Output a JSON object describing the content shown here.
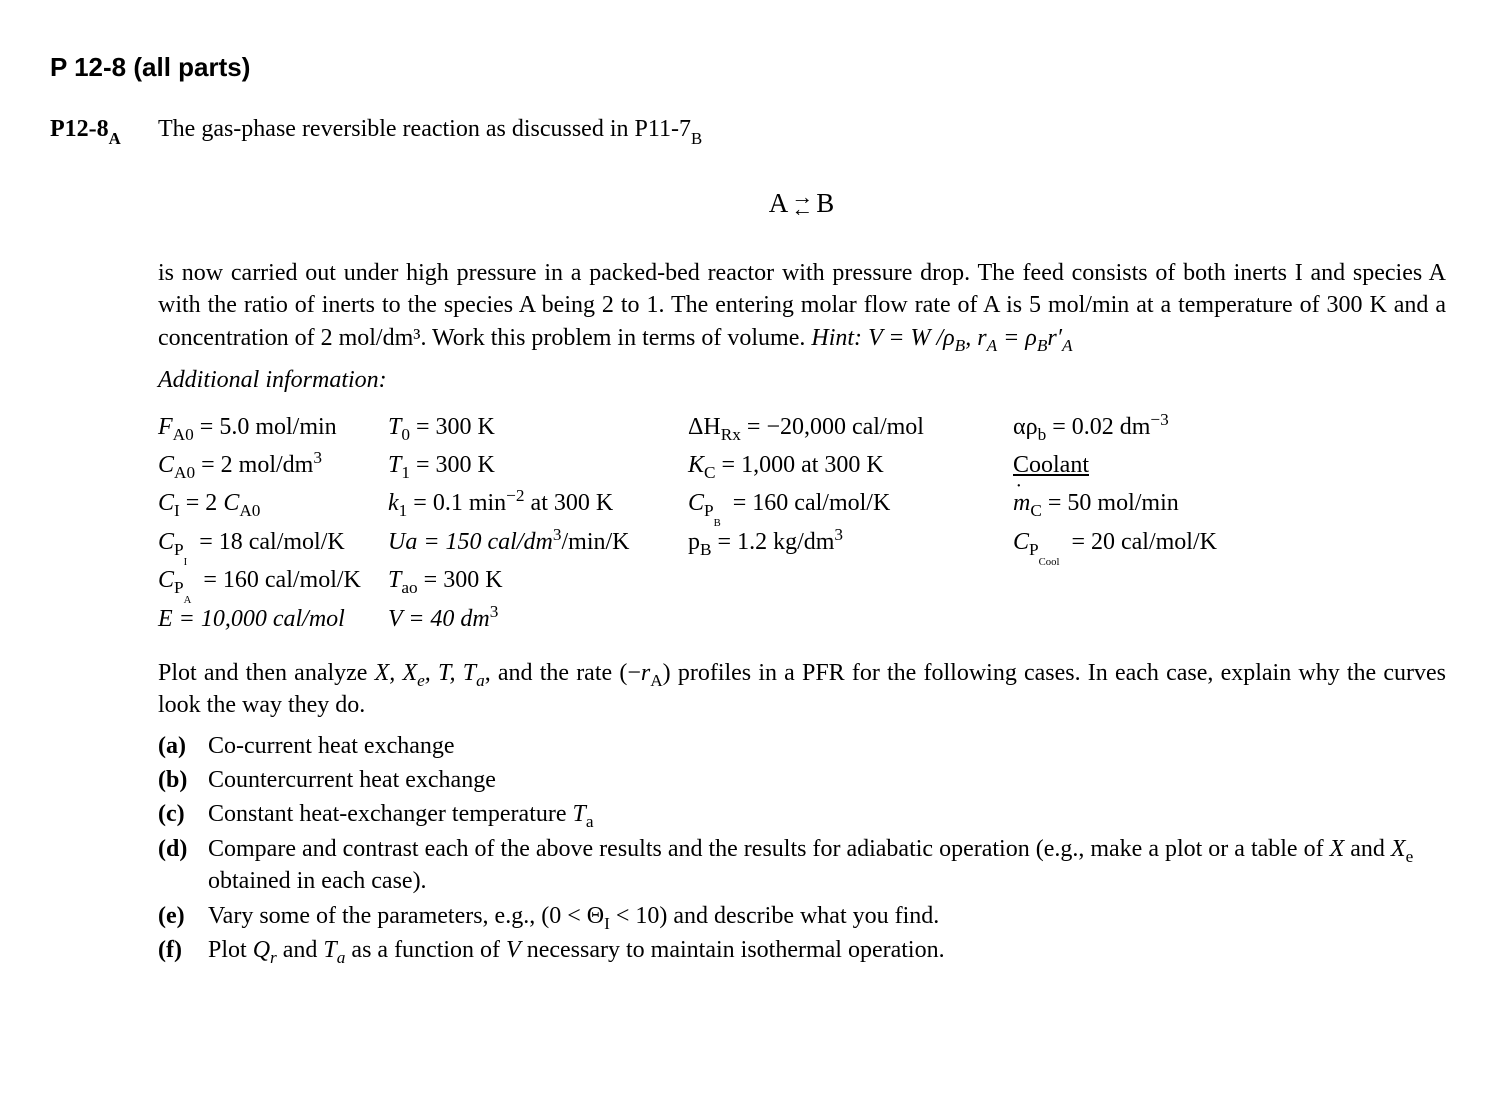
{
  "problem_ref": "P 12-8 (all parts)",
  "id_prefix": "P12-8",
  "id_sub": "A",
  "intro1a": "The gas-phase reversible reaction as discussed in P11-7",
  "intro1b": "B",
  "eqA": "A",
  "eqArr1": "→",
  "eqArr2": "←",
  "eqB": "B",
  "para1": "is now carried out under high pressure in a packed-bed reactor with pressure drop. The feed consists of both inerts I and species A with the ratio of inerts to the species A being 2 to 1. The entering molar flow rate of A is 5 mol/min at a temperature of 300 K and a concentration of 2 mol/dm³. Work this problem in terms of volume.",
  "hint_label": "Hint:",
  "hint_text": " V = W /ρ",
  "hint_subB": "B",
  "hint_text2": ", r",
  "hint_subA": "A",
  "hint_text3": " = ρ",
  "hint_subB2": "B",
  "hint_text4": "r′",
  "hint_subA2": "A",
  "addl_heading": "Additional information:",
  "g": {
    "r1c1a": "F",
    "r1c1b": "A0",
    "r1c1c": " = 5.0 mol/min",
    "r1c2a": "T",
    "r1c2b": "0",
    "r1c2c": " = 300 K",
    "r1c3a": "ΔH",
    "r1c3b": "Rx",
    "r1c3c": " = −20,000 cal/mol",
    "r1c4a": "αρ",
    "r1c4b": "b",
    "r1c4c": " = 0.02 dm",
    "r1c4d": "−3",
    "r2c1a": "C",
    "r2c1b": "A0",
    "r2c1c": " = 2 mol/dm",
    "r2c1d": "3",
    "r2c2a": "T",
    "r2c2b": "1",
    "r2c2c": " = 300 K",
    "r2c3a": "K",
    "r2c3b": "C",
    "r2c3c": " = 1,000 at 300 K",
    "r2c4": "Coolant",
    "r3c1a": "C",
    "r3c1b": "I",
    "r3c1c": " = 2 ",
    "r3c1d": "C",
    "r3c1e": "A0",
    "r3c2a": "k",
    "r3c2b": "1",
    "r3c2c": " = 0.1 min",
    "r3c2d": "−2",
    "r3c2e": " at 300 K",
    "r3c3a": "C",
    "r3c3b": "P",
    "r3c3bb": "B",
    "r3c3c": " = 160 cal/mol/K",
    "r3c4a": "m",
    "r3c4b": "C",
    "r3c4c": " = 50 mol/min",
    "r4c1a": "C",
    "r4c1b": "P",
    "r4c1bb": "I",
    "r4c1c": " = 18 cal/mol/K",
    "r4c2a": "Ua = 150 cal/dm",
    "r4c2b": "3",
    "r4c2c": "/min/K",
    "r4c3a": "p",
    "r4c3b": "B",
    "r4c3c": " = 1.2 kg/dm",
    "r4c3d": "3",
    "r4c4a": "C",
    "r4c4b": "P",
    "r4c4bb": "Cool",
    "r4c4c": " = 20 cal/mol/K",
    "r5c1a": "C",
    "r5c1b": "P",
    "r5c1bb": "A",
    "r5c1c": " = 160 cal/mol/K",
    "r5c2a": "T",
    "r5c2b": "ao",
    "r5c2c": " = 300 K",
    "r6c1": "E = 10,000 cal/mol",
    "r6c2a": "V = 40 dm",
    "r6c2b": "3"
  },
  "task1a": "Plot and then analyze ",
  "task1b": "X, X",
  "task1b_e": "e",
  "task1c": ", T, T",
  "task1c_a": "a",
  "task1d": ", and the rate (−",
  "task1e": "r",
  "task1e_A": "A",
  "task1f": ") profiles in a PFR for the following cases. In each case, explain why the curves look the way they do.",
  "parts": {
    "a": {
      "lbl": "(a)",
      "txt": "Co-current heat exchange"
    },
    "b": {
      "lbl": "(b)",
      "txt": "Countercurrent heat exchange"
    },
    "c": {
      "lbl": "(c)",
      "txt_a": "Constant heat-exchanger temperature ",
      "txt_b": "T",
      "txt_c": "a"
    },
    "d": {
      "lbl": "(d)",
      "txt_a": "Compare and contrast each of the above results and the results for adiabatic operation (e.g., make a plot or a table of ",
      "txt_b": "X",
      "txt_c": " and ",
      "txt_d": "X",
      "txt_e": "e",
      "txt_f": " obtained in each case)."
    },
    "e": {
      "lbl": "(e)",
      "txt_a": "Vary some of the parameters, e.g., (0 < Θ",
      "txt_b": "I",
      "txt_c": " < 10) and describe what you find."
    },
    "f": {
      "lbl": "(f)",
      "txt_a": "Plot ",
      "txt_b": "Q",
      "txt_c": "r",
      "txt_d": " and ",
      "txt_e": "T",
      "txt_f": "a",
      "txt_g": " as a function of ",
      "txt_h": "V",
      "txt_i": " necessary to maintain isothermal operation."
    }
  }
}
